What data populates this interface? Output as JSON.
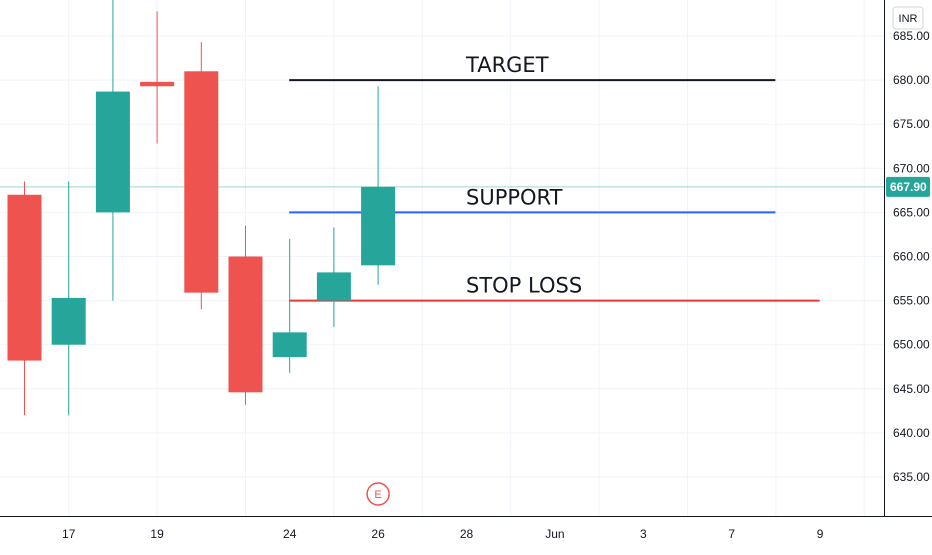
{
  "chart_data": {
    "type": "candlestick",
    "currency": "INR",
    "current_price": 667.9,
    "current_price_label": "667.90",
    "ylim": [
      630,
      690
    ],
    "y_ticks": [
      "635.00",
      "640.00",
      "645.00",
      "650.00",
      "655.00",
      "660.00",
      "665.00",
      "670.00",
      "675.00",
      "680.00",
      "685.00"
    ],
    "y_tick_values": [
      635,
      640,
      645,
      650,
      655,
      660,
      665,
      670,
      675,
      680,
      685
    ],
    "x_tick_labels": [
      "17",
      "19",
      "24",
      "26",
      "28",
      "Jun",
      "3",
      "7",
      "9"
    ],
    "x_tick_slots": [
      1,
      3,
      6,
      8,
      10,
      12,
      14,
      16,
      18
    ],
    "candles": [
      {
        "slot": 0,
        "open": 667.0,
        "high": 668.5,
        "low": 642.0,
        "close": 648.2
      },
      {
        "slot": 1,
        "open": 650.0,
        "high": 668.5,
        "low": 642.0,
        "close": 655.3
      },
      {
        "slot": 2,
        "open": 665.0,
        "high": 692.0,
        "low": 655.0,
        "close": 678.7
      },
      {
        "slot": 3,
        "open": 679.8,
        "high": 687.8,
        "low": 672.8,
        "close": 679.3
      },
      {
        "slot": 4,
        "open": 681.0,
        "high": 684.3,
        "low": 654.0,
        "close": 655.9
      },
      {
        "slot": 5,
        "open": 660.0,
        "high": 663.5,
        "low": 643.2,
        "close": 644.6
      },
      {
        "slot": 6,
        "open": 648.6,
        "high": 662.0,
        "low": 646.8,
        "close": 651.4
      },
      {
        "slot": 7,
        "open": 655.0,
        "high": 663.3,
        "low": 652.0,
        "close": 658.2
      },
      {
        "slot": 8,
        "open": 659.0,
        "high": 679.3,
        "low": 656.8,
        "close": 667.9
      }
    ],
    "annotations": [
      {
        "label": "TARGET",
        "price": 680.0,
        "start_slot": 6,
        "end_slot": 17,
        "label_slot": 10,
        "color": "#131722"
      },
      {
        "label": "SUPPORT",
        "price": 665.0,
        "start_slot": 6,
        "end_slot": 17,
        "label_slot": 10,
        "color": "#2962ff"
      },
      {
        "label": "STOP LOSS",
        "price": 655.0,
        "start_slot": 6,
        "end_slot": 18,
        "label_slot": 10,
        "color": "#e53935"
      }
    ],
    "earnings_marker": {
      "label": "E",
      "slot": 8
    },
    "colors": {
      "up": "#26a69a",
      "down": "#ef5350",
      "grid": "#f0f3fa",
      "axis_text": "#131722",
      "price_line": "#26a69a"
    }
  }
}
